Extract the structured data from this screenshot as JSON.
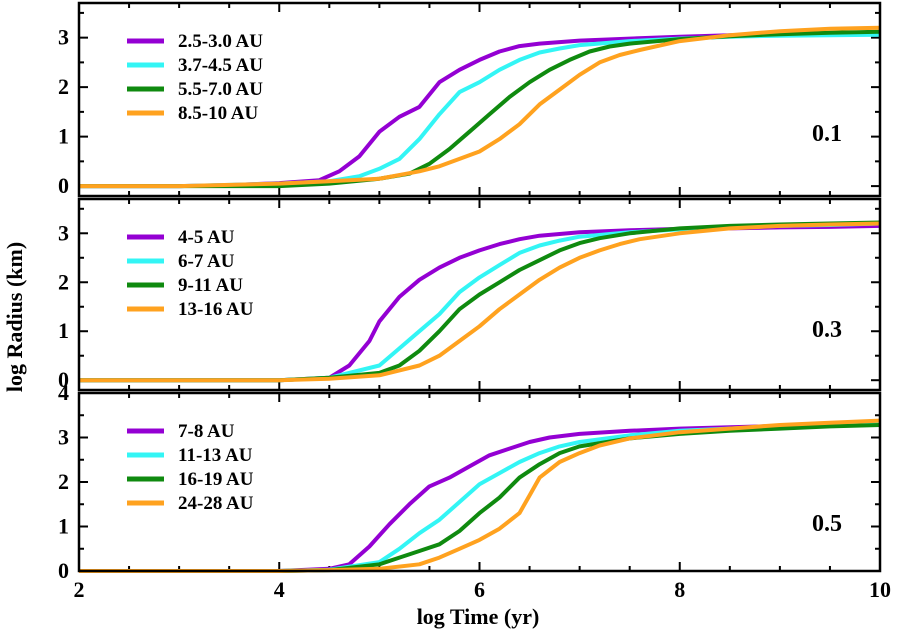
{
  "chart_data": {
    "type": "line",
    "xlabel": "log Time (yr)",
    "ylabel": "log Radius (km)",
    "xlim": [
      2,
      10
    ],
    "x_ticks": [
      2,
      4,
      6,
      8,
      10
    ],
    "colors": [
      "#9400D3",
      "#33F5F5",
      "#0F8A0F",
      "#FFA21F"
    ],
    "panels": [
      {
        "label": "0.1",
        "ylim": [
          -0.2,
          3.7
        ],
        "y_ticks": [
          0,
          1,
          2,
          3
        ],
        "series": [
          {
            "name": "2.5-3.0 AU",
            "x": [
              2,
              3,
              3.5,
              4,
              4.4,
              4.6,
              4.8,
              5.0,
              5.2,
              5.4,
              5.6,
              5.8,
              6.0,
              6.2,
              6.4,
              6.6,
              7.0,
              7.5,
              8.0,
              8.5,
              9.0,
              9.5,
              10
            ],
            "y": [
              0,
              0,
              0.02,
              0.06,
              0.12,
              0.3,
              0.6,
              1.1,
              1.4,
              1.6,
              2.1,
              2.35,
              2.55,
              2.72,
              2.83,
              2.88,
              2.94,
              2.98,
              3.02,
              3.05,
              3.07,
              3.08,
              3.1
            ]
          },
          {
            "name": "3.7-4.5 AU",
            "x": [
              2,
              3,
              4,
              4.5,
              4.8,
              5.0,
              5.2,
              5.4,
              5.6,
              5.8,
              6.0,
              6.2,
              6.4,
              6.6,
              6.8,
              7.0,
              7.5,
              8.0,
              8.5,
              9.0,
              9.5,
              10
            ],
            "y": [
              0,
              0,
              0.05,
              0.1,
              0.2,
              0.35,
              0.55,
              0.95,
              1.45,
              1.9,
              2.1,
              2.35,
              2.55,
              2.7,
              2.78,
              2.85,
              2.93,
              2.98,
              3.02,
              3.04,
              3.05,
              3.06
            ]
          },
          {
            "name": "5.5-7.0 AU",
            "x": [
              2,
              3,
              4,
              4.5,
              5.0,
              5.3,
              5.5,
              5.7,
              5.9,
              6.1,
              6.3,
              6.5,
              6.7,
              6.9,
              7.1,
              7.3,
              7.5,
              8.0,
              8.5,
              9.0,
              9.5,
              10
            ],
            "y": [
              0,
              0,
              0,
              0.05,
              0.15,
              0.25,
              0.45,
              0.75,
              1.1,
              1.45,
              1.8,
              2.1,
              2.35,
              2.55,
              2.72,
              2.82,
              2.88,
              2.97,
              3.03,
              3.07,
              3.1,
              3.12
            ]
          },
          {
            "name": "8.5-10 AU",
            "x": [
              2,
              3,
              4,
              4.5,
              5.0,
              5.4,
              5.6,
              5.8,
              6.0,
              6.2,
              6.4,
              6.6,
              6.8,
              7.0,
              7.2,
              7.4,
              7.6,
              8.0,
              8.5,
              9.0,
              9.5,
              10
            ],
            "y": [
              0,
              0,
              0.05,
              0.1,
              0.15,
              0.3,
              0.4,
              0.55,
              0.7,
              0.95,
              1.25,
              1.65,
              1.95,
              2.25,
              2.5,
              2.65,
              2.75,
              2.93,
              3.05,
              3.13,
              3.18,
              3.2
            ]
          }
        ]
      },
      {
        "label": "0.3",
        "ylim": [
          -0.2,
          3.7
        ],
        "y_ticks": [
          0,
          1,
          2,
          3
        ],
        "series": [
          {
            "name": "4-5 AU",
            "x": [
              2,
              3,
              4,
              4.5,
              4.7,
              4.9,
              5.0,
              5.2,
              5.4,
              5.6,
              5.8,
              6.0,
              6.2,
              6.4,
              6.6,
              7.0,
              7.5,
              8.0,
              8.5,
              9.0,
              9.5,
              10
            ],
            "y": [
              0,
              0,
              0,
              0.05,
              0.3,
              0.8,
              1.2,
              1.7,
              2.05,
              2.3,
              2.5,
              2.65,
              2.78,
              2.88,
              2.95,
              3.02,
              3.06,
              3.09,
              3.1,
              3.12,
              3.13,
              3.15
            ]
          },
          {
            "name": "6-7 AU",
            "x": [
              2,
              3,
              4,
              4.5,
              5.0,
              5.2,
              5.4,
              5.6,
              5.8,
              6.0,
              6.2,
              6.4,
              6.6,
              6.8,
              7.0,
              7.5,
              8.0,
              8.5,
              9.0,
              9.5,
              10
            ],
            "y": [
              0,
              0,
              0,
              0.05,
              0.3,
              0.65,
              1.0,
              1.35,
              1.8,
              2.1,
              2.35,
              2.6,
              2.75,
              2.85,
              2.93,
              3.02,
              3.08,
              3.12,
              3.15,
              3.17,
              3.2
            ]
          },
          {
            "name": "9-11 AU",
            "x": [
              2,
              3,
              4,
              4.5,
              5.0,
              5.2,
              5.4,
              5.6,
              5.8,
              6.0,
              6.2,
              6.4,
              6.6,
              6.8,
              7.0,
              7.2,
              7.5,
              8.0,
              8.5,
              9.0,
              9.5,
              10
            ],
            "y": [
              0,
              0,
              0,
              0.05,
              0.15,
              0.3,
              0.6,
              1.0,
              1.45,
              1.75,
              2.0,
              2.25,
              2.45,
              2.65,
              2.8,
              2.9,
              3.0,
              3.1,
              3.15,
              3.18,
              3.2,
              3.22
            ]
          },
          {
            "name": "13-16 AU",
            "x": [
              2,
              3,
              4,
              4.5,
              5.0,
              5.4,
              5.6,
              5.8,
              6.0,
              6.2,
              6.4,
              6.6,
              6.8,
              7.0,
              7.2,
              7.4,
              7.6,
              8.0,
              8.5,
              9.0,
              9.5,
              10
            ],
            "y": [
              0,
              0,
              0,
              0.03,
              0.1,
              0.3,
              0.5,
              0.8,
              1.1,
              1.45,
              1.75,
              2.05,
              2.3,
              2.5,
              2.65,
              2.78,
              2.88,
              3.0,
              3.1,
              3.15,
              3.18,
              3.2
            ]
          }
        ]
      },
      {
        "label": "0.5",
        "ylim": [
          0,
          4
        ],
        "y_ticks": [
          0,
          1,
          2,
          3,
          4
        ],
        "series": [
          {
            "name": "7-8 AU",
            "x": [
              2,
              3,
              4,
              4.5,
              4.7,
              4.9,
              5.1,
              5.3,
              5.5,
              5.7,
              5.9,
              6.1,
              6.3,
              6.5,
              6.7,
              7.0,
              7.5,
              8.0,
              8.5,
              9.0,
              9.5,
              10
            ],
            "y": [
              0,
              0,
              0,
              0.05,
              0.15,
              0.55,
              1.05,
              1.5,
              1.9,
              2.1,
              2.35,
              2.6,
              2.75,
              2.9,
              3.0,
              3.08,
              3.15,
              3.2,
              3.23,
              3.26,
              3.28,
              3.3
            ]
          },
          {
            "name": "11-13 AU",
            "x": [
              2,
              3,
              4,
              4.5,
              5.0,
              5.2,
              5.4,
              5.6,
              5.8,
              6.0,
              6.2,
              6.4,
              6.6,
              6.8,
              7.0,
              7.5,
              8.0,
              8.5,
              9.0,
              9.5,
              10
            ],
            "y": [
              0,
              0,
              0,
              0.03,
              0.2,
              0.5,
              0.85,
              1.15,
              1.55,
              1.95,
              2.2,
              2.45,
              2.65,
              2.8,
              2.9,
              3.05,
              3.15,
              3.2,
              3.25,
              3.28,
              3.3
            ]
          },
          {
            "name": "16-19 AU",
            "x": [
              2,
              3,
              4,
              4.5,
              5.0,
              5.2,
              5.4,
              5.6,
              5.8,
              6.0,
              6.2,
              6.4,
              6.6,
              6.8,
              7.0,
              7.5,
              8.0,
              8.5,
              9.0,
              9.5,
              10
            ],
            "y": [
              0,
              0,
              0,
              0.02,
              0.15,
              0.3,
              0.45,
              0.6,
              0.9,
              1.3,
              1.65,
              2.1,
              2.4,
              2.65,
              2.8,
              2.98,
              3.08,
              3.15,
              3.2,
              3.25,
              3.28
            ]
          },
          {
            "name": "24-28 AU",
            "x": [
              2,
              3,
              4,
              4.5,
              5.0,
              5.4,
              5.6,
              5.8,
              6.0,
              6.2,
              6.4,
              6.5,
              6.6,
              6.8,
              7.0,
              7.2,
              7.5,
              8.0,
              8.5,
              9.0,
              9.5,
              10
            ],
            "y": [
              0,
              0,
              0,
              0.02,
              0.05,
              0.15,
              0.3,
              0.5,
              0.7,
              0.95,
              1.3,
              1.7,
              2.1,
              2.45,
              2.65,
              2.82,
              2.98,
              3.12,
              3.2,
              3.28,
              3.33,
              3.38
            ]
          }
        ]
      }
    ]
  }
}
